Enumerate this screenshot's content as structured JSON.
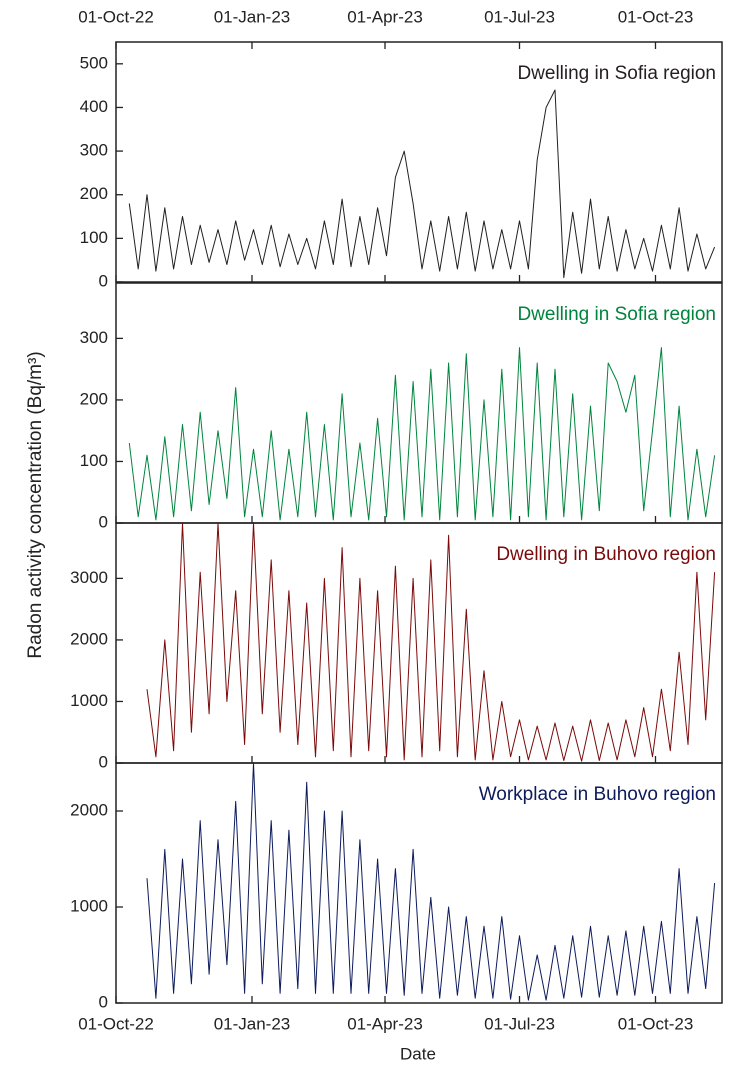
{
  "axis_labels": {
    "x": "Date",
    "y": "Radon activity concentration  (Bq/m³)"
  },
  "chart_data": [
    {
      "type": "line",
      "title": "Dwelling in Sofia region",
      "xlim": [
        "2022-10-01",
        "2023-11-15"
      ],
      "xticks": [
        {
          "value": "2022-10-01",
          "label": "01-Oct-22"
        },
        {
          "value": "2023-01-01",
          "label": "01-Jan-23"
        },
        {
          "value": "2023-04-01",
          "label": "01-Apr-23"
        },
        {
          "value": "2023-07-01",
          "label": "01-Jul-23"
        },
        {
          "value": "2023-10-01",
          "label": "01-Oct-23"
        }
      ],
      "ylim": [
        0,
        550
      ],
      "yticks": [
        0,
        100,
        200,
        300,
        400,
        500
      ],
      "x": [
        "2022-10-10",
        "2022-10-16",
        "2022-10-22",
        "2022-10-28",
        "2022-11-03",
        "2022-11-09",
        "2022-11-15",
        "2022-11-21",
        "2022-11-27",
        "2022-12-03",
        "2022-12-09",
        "2022-12-15",
        "2022-12-21",
        "2022-12-27",
        "2023-01-02",
        "2023-01-08",
        "2023-01-14",
        "2023-01-20",
        "2023-01-26",
        "2023-02-01",
        "2023-02-07",
        "2023-02-13",
        "2023-02-19",
        "2023-02-25",
        "2023-03-03",
        "2023-03-09",
        "2023-03-15",
        "2023-03-21",
        "2023-03-27",
        "2023-04-02",
        "2023-04-08",
        "2023-04-14",
        "2023-04-20",
        "2023-04-26",
        "2023-05-02",
        "2023-05-08",
        "2023-05-14",
        "2023-05-20",
        "2023-05-26",
        "2023-06-01",
        "2023-06-07",
        "2023-06-13",
        "2023-06-19",
        "2023-06-25",
        "2023-07-01",
        "2023-07-07",
        "2023-07-13",
        "2023-07-19",
        "2023-07-25",
        "2023-07-31",
        "2023-08-06",
        "2023-08-12",
        "2023-08-18",
        "2023-08-24",
        "2023-08-30",
        "2023-09-05",
        "2023-09-11",
        "2023-09-17",
        "2023-09-23",
        "2023-09-29",
        "2023-10-05",
        "2023-10-11",
        "2023-10-17",
        "2023-10-23",
        "2023-10-29",
        "2023-11-04",
        "2023-11-10"
      ],
      "color": "#231f20",
      "values": [
        180,
        30,
        200,
        25,
        170,
        30,
        150,
        40,
        130,
        45,
        120,
        40,
        140,
        50,
        120,
        40,
        130,
        35,
        110,
        40,
        100,
        30,
        140,
        40,
        190,
        35,
        150,
        40,
        170,
        60,
        240,
        300,
        180,
        30,
        140,
        25,
        150,
        30,
        160,
        25,
        140,
        30,
        120,
        30,
        140,
        30,
        280,
        400,
        440,
        10,
        160,
        20,
        190,
        30,
        150,
        25,
        120,
        30,
        100,
        25,
        130,
        30,
        170,
        25,
        110,
        30,
        80
      ]
    },
    {
      "type": "line",
      "title": "Dwelling in Sofia region",
      "xlim": [
        "2022-10-01",
        "2023-11-15"
      ],
      "xticks": [
        {
          "value": "2022-10-01",
          "label": "01-Oct-22"
        },
        {
          "value": "2023-01-01",
          "label": "01-Jan-23"
        },
        {
          "value": "2023-04-01",
          "label": "01-Apr-23"
        },
        {
          "value": "2023-07-01",
          "label": "01-Jul-23"
        },
        {
          "value": "2023-10-01",
          "label": "01-Oct-23"
        }
      ],
      "ylim": [
        0,
        390
      ],
      "yticks": [
        0,
        100,
        200,
        300
      ],
      "x": [
        "2022-10-10",
        "2022-10-16",
        "2022-10-22",
        "2022-10-28",
        "2022-11-03",
        "2022-11-09",
        "2022-11-15",
        "2022-11-21",
        "2022-11-27",
        "2022-12-03",
        "2022-12-09",
        "2022-12-15",
        "2022-12-21",
        "2022-12-27",
        "2023-01-02",
        "2023-01-08",
        "2023-01-14",
        "2023-01-20",
        "2023-01-26",
        "2023-02-01",
        "2023-02-07",
        "2023-02-13",
        "2023-02-19",
        "2023-02-25",
        "2023-03-03",
        "2023-03-09",
        "2023-03-15",
        "2023-03-21",
        "2023-03-27",
        "2023-04-02",
        "2023-04-08",
        "2023-04-14",
        "2023-04-20",
        "2023-04-26",
        "2023-05-02",
        "2023-05-08",
        "2023-05-14",
        "2023-05-20",
        "2023-05-26",
        "2023-06-01",
        "2023-06-07",
        "2023-06-13",
        "2023-06-19",
        "2023-06-25",
        "2023-07-01",
        "2023-07-07",
        "2023-07-13",
        "2023-07-19",
        "2023-07-25",
        "2023-07-31",
        "2023-08-06",
        "2023-08-12",
        "2023-08-18",
        "2023-08-24",
        "2023-08-30",
        "2023-09-05",
        "2023-09-11",
        "2023-09-17",
        "2023-09-23",
        "2023-09-29",
        "2023-10-05",
        "2023-10-11",
        "2023-10-17",
        "2023-10-23",
        "2023-10-29",
        "2023-11-04",
        "2023-11-10"
      ],
      "color": "#00843d",
      "values": [
        130,
        10,
        110,
        5,
        140,
        10,
        160,
        20,
        180,
        30,
        150,
        40,
        220,
        10,
        120,
        10,
        150,
        5,
        120,
        10,
        180,
        10,
        160,
        5,
        210,
        10,
        130,
        5,
        170,
        10,
        240,
        5,
        230,
        10,
        250,
        5,
        260,
        10,
        275,
        5,
        200,
        10,
        250,
        5,
        285,
        10,
        260,
        5,
        250,
        10,
        210,
        5,
        190,
        20,
        260,
        230,
        180,
        240,
        20,
        150,
        285,
        10,
        190,
        5,
        120,
        10,
        110
      ]
    },
    {
      "type": "line",
      "title": "Dwelling in Buhovo region",
      "xlim": [
        "2022-10-01",
        "2023-11-15"
      ],
      "xticks": [
        {
          "value": "2022-10-01",
          "label": "01-Oct-22"
        },
        {
          "value": "2023-01-01",
          "label": "01-Jan-23"
        },
        {
          "value": "2023-04-01",
          "label": "01-Apr-23"
        },
        {
          "value": "2023-07-01",
          "label": "01-Jul-23"
        },
        {
          "value": "2023-10-01",
          "label": "01-Oct-23"
        }
      ],
      "ylim": [
        0,
        3900
      ],
      "yticks": [
        0,
        1000,
        2000,
        3000
      ],
      "x": [
        "2022-10-22",
        "2022-10-28",
        "2022-11-03",
        "2022-11-09",
        "2022-11-15",
        "2022-11-21",
        "2022-11-27",
        "2022-12-03",
        "2022-12-09",
        "2022-12-15",
        "2022-12-21",
        "2022-12-27",
        "2023-01-02",
        "2023-01-08",
        "2023-01-14",
        "2023-01-20",
        "2023-01-26",
        "2023-02-01",
        "2023-02-07",
        "2023-02-13",
        "2023-02-19",
        "2023-02-25",
        "2023-03-03",
        "2023-03-09",
        "2023-03-15",
        "2023-03-21",
        "2023-03-27",
        "2023-04-02",
        "2023-04-08",
        "2023-04-14",
        "2023-04-20",
        "2023-04-26",
        "2023-05-02",
        "2023-05-08",
        "2023-05-14",
        "2023-05-20",
        "2023-05-26",
        "2023-06-01",
        "2023-06-07",
        "2023-06-13",
        "2023-06-19",
        "2023-06-25",
        "2023-07-01",
        "2023-07-07",
        "2023-07-13",
        "2023-07-19",
        "2023-07-25",
        "2023-07-31",
        "2023-08-06",
        "2023-08-12",
        "2023-08-18",
        "2023-08-24",
        "2023-08-30",
        "2023-09-05",
        "2023-09-11",
        "2023-09-17",
        "2023-09-23",
        "2023-09-29",
        "2023-10-05",
        "2023-10-11",
        "2023-10-17",
        "2023-10-23",
        "2023-10-29",
        "2023-11-04",
        "2023-11-10"
      ],
      "color": "#7a0a0a",
      "values": [
        1200,
        100,
        2000,
        200,
        3900,
        500,
        3100,
        800,
        3900,
        1000,
        2800,
        300,
        3900,
        800,
        3300,
        500,
        2800,
        300,
        2600,
        100,
        3000,
        200,
        3500,
        100,
        3000,
        200,
        2800,
        100,
        3200,
        50,
        3000,
        100,
        3300,
        200,
        3700,
        100,
        2500,
        50,
        1500,
        50,
        1000,
        100,
        700,
        50,
        600,
        50,
        650,
        40,
        600,
        30,
        700,
        40,
        650,
        50,
        700,
        100,
        900,
        100,
        1200,
        200,
        1800,
        300,
        3100,
        700,
        3100
      ]
    },
    {
      "type": "line",
      "title": "Workplace in Buhovo region",
      "xlim": [
        "2022-10-01",
        "2023-11-15"
      ],
      "xticks": [
        {
          "value": "2022-10-01",
          "label": "01-Oct-22"
        },
        {
          "value": "2023-01-01",
          "label": "01-Jan-23"
        },
        {
          "value": "2023-04-01",
          "label": "01-Apr-23"
        },
        {
          "value": "2023-07-01",
          "label": "01-Jul-23"
        },
        {
          "value": "2023-10-01",
          "label": "01-Oct-23"
        }
      ],
      "ylim": [
        0,
        2500
      ],
      "yticks": [
        0,
        1000,
        2000
      ],
      "x": [
        "2022-10-22",
        "2022-10-28",
        "2022-11-03",
        "2022-11-09",
        "2022-11-15",
        "2022-11-21",
        "2022-11-27",
        "2022-12-03",
        "2022-12-09",
        "2022-12-15",
        "2022-12-21",
        "2022-12-27",
        "2023-01-02",
        "2023-01-08",
        "2023-01-14",
        "2023-01-20",
        "2023-01-26",
        "2023-02-01",
        "2023-02-07",
        "2023-02-13",
        "2023-02-19",
        "2023-02-25",
        "2023-03-03",
        "2023-03-09",
        "2023-03-15",
        "2023-03-21",
        "2023-03-27",
        "2023-04-02",
        "2023-04-08",
        "2023-04-14",
        "2023-04-20",
        "2023-04-26",
        "2023-05-02",
        "2023-05-08",
        "2023-05-14",
        "2023-05-20",
        "2023-05-26",
        "2023-06-01",
        "2023-06-07",
        "2023-06-13",
        "2023-06-19",
        "2023-06-25",
        "2023-07-01",
        "2023-07-07",
        "2023-07-13",
        "2023-07-19",
        "2023-07-25",
        "2023-07-31",
        "2023-08-06",
        "2023-08-12",
        "2023-08-18",
        "2023-08-24",
        "2023-08-30",
        "2023-09-05",
        "2023-09-11",
        "2023-09-17",
        "2023-09-23",
        "2023-09-29",
        "2023-10-05",
        "2023-10-11",
        "2023-10-17",
        "2023-10-23",
        "2023-10-29",
        "2023-11-04",
        "2023-11-10"
      ],
      "color": "#0d1b5c",
      "values": [
        1300,
        50,
        1600,
        100,
        1500,
        200,
        1900,
        300,
        1700,
        400,
        2100,
        100,
        2500,
        200,
        1900,
        100,
        1800,
        150,
        2300,
        100,
        2000,
        100,
        2000,
        100,
        1700,
        100,
        1500,
        100,
        1400,
        80,
        1600,
        100,
        1100,
        50,
        1000,
        80,
        900,
        50,
        800,
        50,
        900,
        40,
        700,
        30,
        500,
        30,
        600,
        50,
        700,
        60,
        800,
        60,
        700,
        80,
        750,
        80,
        800,
        100,
        850,
        100,
        1400,
        100,
        900,
        150,
        1250
      ]
    }
  ]
}
